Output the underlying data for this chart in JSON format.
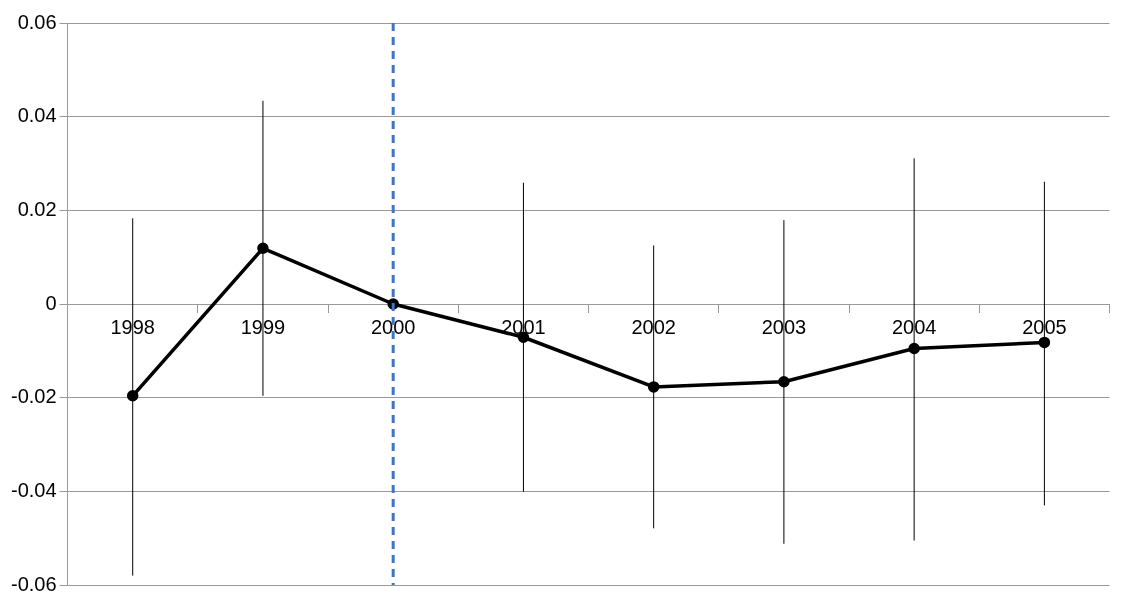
{
  "chart_data": {
    "type": "line",
    "categories": [
      "1998",
      "1999",
      "2000",
      "2001",
      "2002",
      "2003",
      "2004",
      "2005"
    ],
    "series": [
      {
        "color": "#000000",
        "values": [
          -0.0196,
          0.0119,
          0,
          -0.0071,
          -0.0177,
          -0.0166,
          -0.0095,
          -0.0082
        ],
        "errors": [
          [
            -0.058,
            0.0183
          ],
          [
            -0.0196,
            0.0434
          ],
          null,
          [
            -0.0401,
            0.0259
          ],
          [
            -0.0479,
            0.0125
          ],
          [
            -0.0512,
            0.0179
          ],
          [
            -0.0505,
            0.0311
          ],
          [
            -0.043,
            0.0261
          ]
        ]
      }
    ],
    "ylim": [
      -0.06,
      0.06
    ],
    "yticks": [
      -0.06,
      -0.04,
      -0.02,
      0,
      0.02,
      0.04,
      0.06
    ],
    "ref_lines": [
      {
        "axis": "x",
        "value": "2000",
        "color": "#4472c4",
        "line_style": "dashed"
      }
    ],
    "grid": "y",
    "marker": "circle",
    "line_style": "solid",
    "legend": false
  }
}
